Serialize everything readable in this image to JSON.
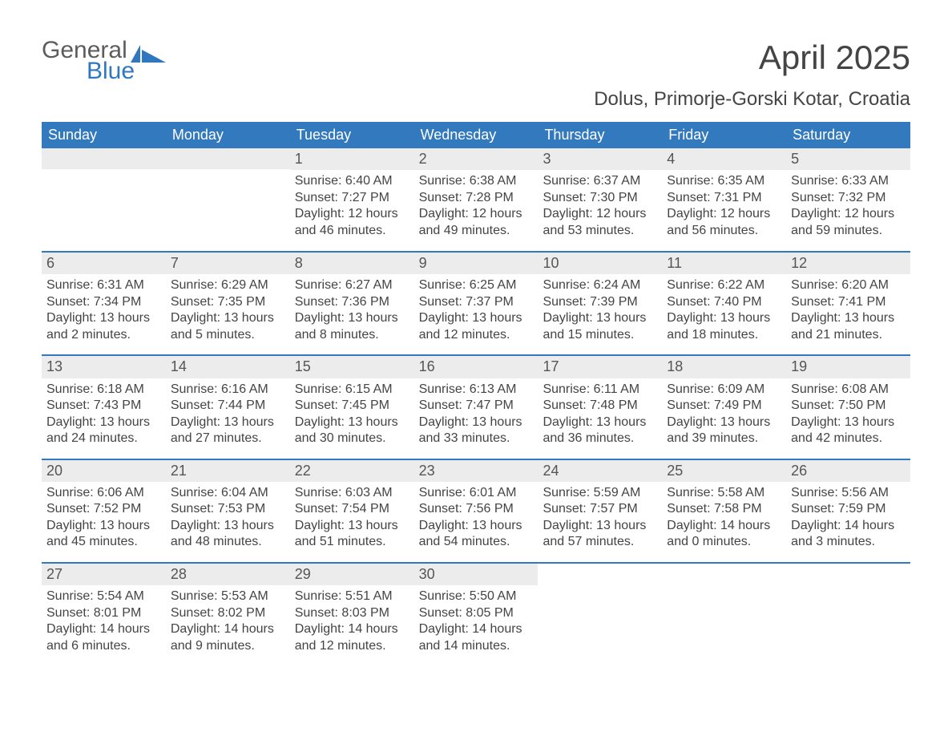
{
  "logo": {
    "word1": "General",
    "word2": "Blue",
    "word1_color": "#5c5c5c",
    "word2_color": "#2f78bf",
    "icon_color": "#2f78bf"
  },
  "title": "April 2025",
  "subtitle": "Dolus, Primorje-Gorski Kotar, Croatia",
  "colors": {
    "header_bg": "#3279bd",
    "header_text": "#ffffff",
    "daynum_bg": "#ececec",
    "body_text": "#444444",
    "week_border": "#3279bd",
    "page_bg": "#ffffff"
  },
  "fonts": {
    "title_size_pt": 32,
    "subtitle_size_pt": 18,
    "header_size_pt": 14,
    "daynum_size_pt": 14,
    "body_size_pt": 12
  },
  "day_headers": [
    "Sunday",
    "Monday",
    "Tuesday",
    "Wednesday",
    "Thursday",
    "Friday",
    "Saturday"
  ],
  "weeks": [
    [
      {
        "num": "",
        "sunrise": "",
        "sunset": "",
        "daylight": ""
      },
      {
        "num": "",
        "sunrise": "",
        "sunset": "",
        "daylight": ""
      },
      {
        "num": "1",
        "sunrise": "Sunrise: 6:40 AM",
        "sunset": "Sunset: 7:27 PM",
        "daylight": "Daylight: 12 hours and 46 minutes."
      },
      {
        "num": "2",
        "sunrise": "Sunrise: 6:38 AM",
        "sunset": "Sunset: 7:28 PM",
        "daylight": "Daylight: 12 hours and 49 minutes."
      },
      {
        "num": "3",
        "sunrise": "Sunrise: 6:37 AM",
        "sunset": "Sunset: 7:30 PM",
        "daylight": "Daylight: 12 hours and 53 minutes."
      },
      {
        "num": "4",
        "sunrise": "Sunrise: 6:35 AM",
        "sunset": "Sunset: 7:31 PM",
        "daylight": "Daylight: 12 hours and 56 minutes."
      },
      {
        "num": "5",
        "sunrise": "Sunrise: 6:33 AM",
        "sunset": "Sunset: 7:32 PM",
        "daylight": "Daylight: 12 hours and 59 minutes."
      }
    ],
    [
      {
        "num": "6",
        "sunrise": "Sunrise: 6:31 AM",
        "sunset": "Sunset: 7:34 PM",
        "daylight": "Daylight: 13 hours and 2 minutes."
      },
      {
        "num": "7",
        "sunrise": "Sunrise: 6:29 AM",
        "sunset": "Sunset: 7:35 PM",
        "daylight": "Daylight: 13 hours and 5 minutes."
      },
      {
        "num": "8",
        "sunrise": "Sunrise: 6:27 AM",
        "sunset": "Sunset: 7:36 PM",
        "daylight": "Daylight: 13 hours and 8 minutes."
      },
      {
        "num": "9",
        "sunrise": "Sunrise: 6:25 AM",
        "sunset": "Sunset: 7:37 PM",
        "daylight": "Daylight: 13 hours and 12 minutes."
      },
      {
        "num": "10",
        "sunrise": "Sunrise: 6:24 AM",
        "sunset": "Sunset: 7:39 PM",
        "daylight": "Daylight: 13 hours and 15 minutes."
      },
      {
        "num": "11",
        "sunrise": "Sunrise: 6:22 AM",
        "sunset": "Sunset: 7:40 PM",
        "daylight": "Daylight: 13 hours and 18 minutes."
      },
      {
        "num": "12",
        "sunrise": "Sunrise: 6:20 AM",
        "sunset": "Sunset: 7:41 PM",
        "daylight": "Daylight: 13 hours and 21 minutes."
      }
    ],
    [
      {
        "num": "13",
        "sunrise": "Sunrise: 6:18 AM",
        "sunset": "Sunset: 7:43 PM",
        "daylight": "Daylight: 13 hours and 24 minutes."
      },
      {
        "num": "14",
        "sunrise": "Sunrise: 6:16 AM",
        "sunset": "Sunset: 7:44 PM",
        "daylight": "Daylight: 13 hours and 27 minutes."
      },
      {
        "num": "15",
        "sunrise": "Sunrise: 6:15 AM",
        "sunset": "Sunset: 7:45 PM",
        "daylight": "Daylight: 13 hours and 30 minutes."
      },
      {
        "num": "16",
        "sunrise": "Sunrise: 6:13 AM",
        "sunset": "Sunset: 7:47 PM",
        "daylight": "Daylight: 13 hours and 33 minutes."
      },
      {
        "num": "17",
        "sunrise": "Sunrise: 6:11 AM",
        "sunset": "Sunset: 7:48 PM",
        "daylight": "Daylight: 13 hours and 36 minutes."
      },
      {
        "num": "18",
        "sunrise": "Sunrise: 6:09 AM",
        "sunset": "Sunset: 7:49 PM",
        "daylight": "Daylight: 13 hours and 39 minutes."
      },
      {
        "num": "19",
        "sunrise": "Sunrise: 6:08 AM",
        "sunset": "Sunset: 7:50 PM",
        "daylight": "Daylight: 13 hours and 42 minutes."
      }
    ],
    [
      {
        "num": "20",
        "sunrise": "Sunrise: 6:06 AM",
        "sunset": "Sunset: 7:52 PM",
        "daylight": "Daylight: 13 hours and 45 minutes."
      },
      {
        "num": "21",
        "sunrise": "Sunrise: 6:04 AM",
        "sunset": "Sunset: 7:53 PM",
        "daylight": "Daylight: 13 hours and 48 minutes."
      },
      {
        "num": "22",
        "sunrise": "Sunrise: 6:03 AM",
        "sunset": "Sunset: 7:54 PM",
        "daylight": "Daylight: 13 hours and 51 minutes."
      },
      {
        "num": "23",
        "sunrise": "Sunrise: 6:01 AM",
        "sunset": "Sunset: 7:56 PM",
        "daylight": "Daylight: 13 hours and 54 minutes."
      },
      {
        "num": "24",
        "sunrise": "Sunrise: 5:59 AM",
        "sunset": "Sunset: 7:57 PM",
        "daylight": "Daylight: 13 hours and 57 minutes."
      },
      {
        "num": "25",
        "sunrise": "Sunrise: 5:58 AM",
        "sunset": "Sunset: 7:58 PM",
        "daylight": "Daylight: 14 hours and 0 minutes."
      },
      {
        "num": "26",
        "sunrise": "Sunrise: 5:56 AM",
        "sunset": "Sunset: 7:59 PM",
        "daylight": "Daylight: 14 hours and 3 minutes."
      }
    ],
    [
      {
        "num": "27",
        "sunrise": "Sunrise: 5:54 AM",
        "sunset": "Sunset: 8:01 PM",
        "daylight": "Daylight: 14 hours and 6 minutes."
      },
      {
        "num": "28",
        "sunrise": "Sunrise: 5:53 AM",
        "sunset": "Sunset: 8:02 PM",
        "daylight": "Daylight: 14 hours and 9 minutes."
      },
      {
        "num": "29",
        "sunrise": "Sunrise: 5:51 AM",
        "sunset": "Sunset: 8:03 PM",
        "daylight": "Daylight: 14 hours and 12 minutes."
      },
      {
        "num": "30",
        "sunrise": "Sunrise: 5:50 AM",
        "sunset": "Sunset: 8:05 PM",
        "daylight": "Daylight: 14 hours and 14 minutes."
      },
      {
        "num": "",
        "sunrise": "",
        "sunset": "",
        "daylight": ""
      },
      {
        "num": "",
        "sunrise": "",
        "sunset": "",
        "daylight": ""
      },
      {
        "num": "",
        "sunrise": "",
        "sunset": "",
        "daylight": ""
      }
    ]
  ]
}
